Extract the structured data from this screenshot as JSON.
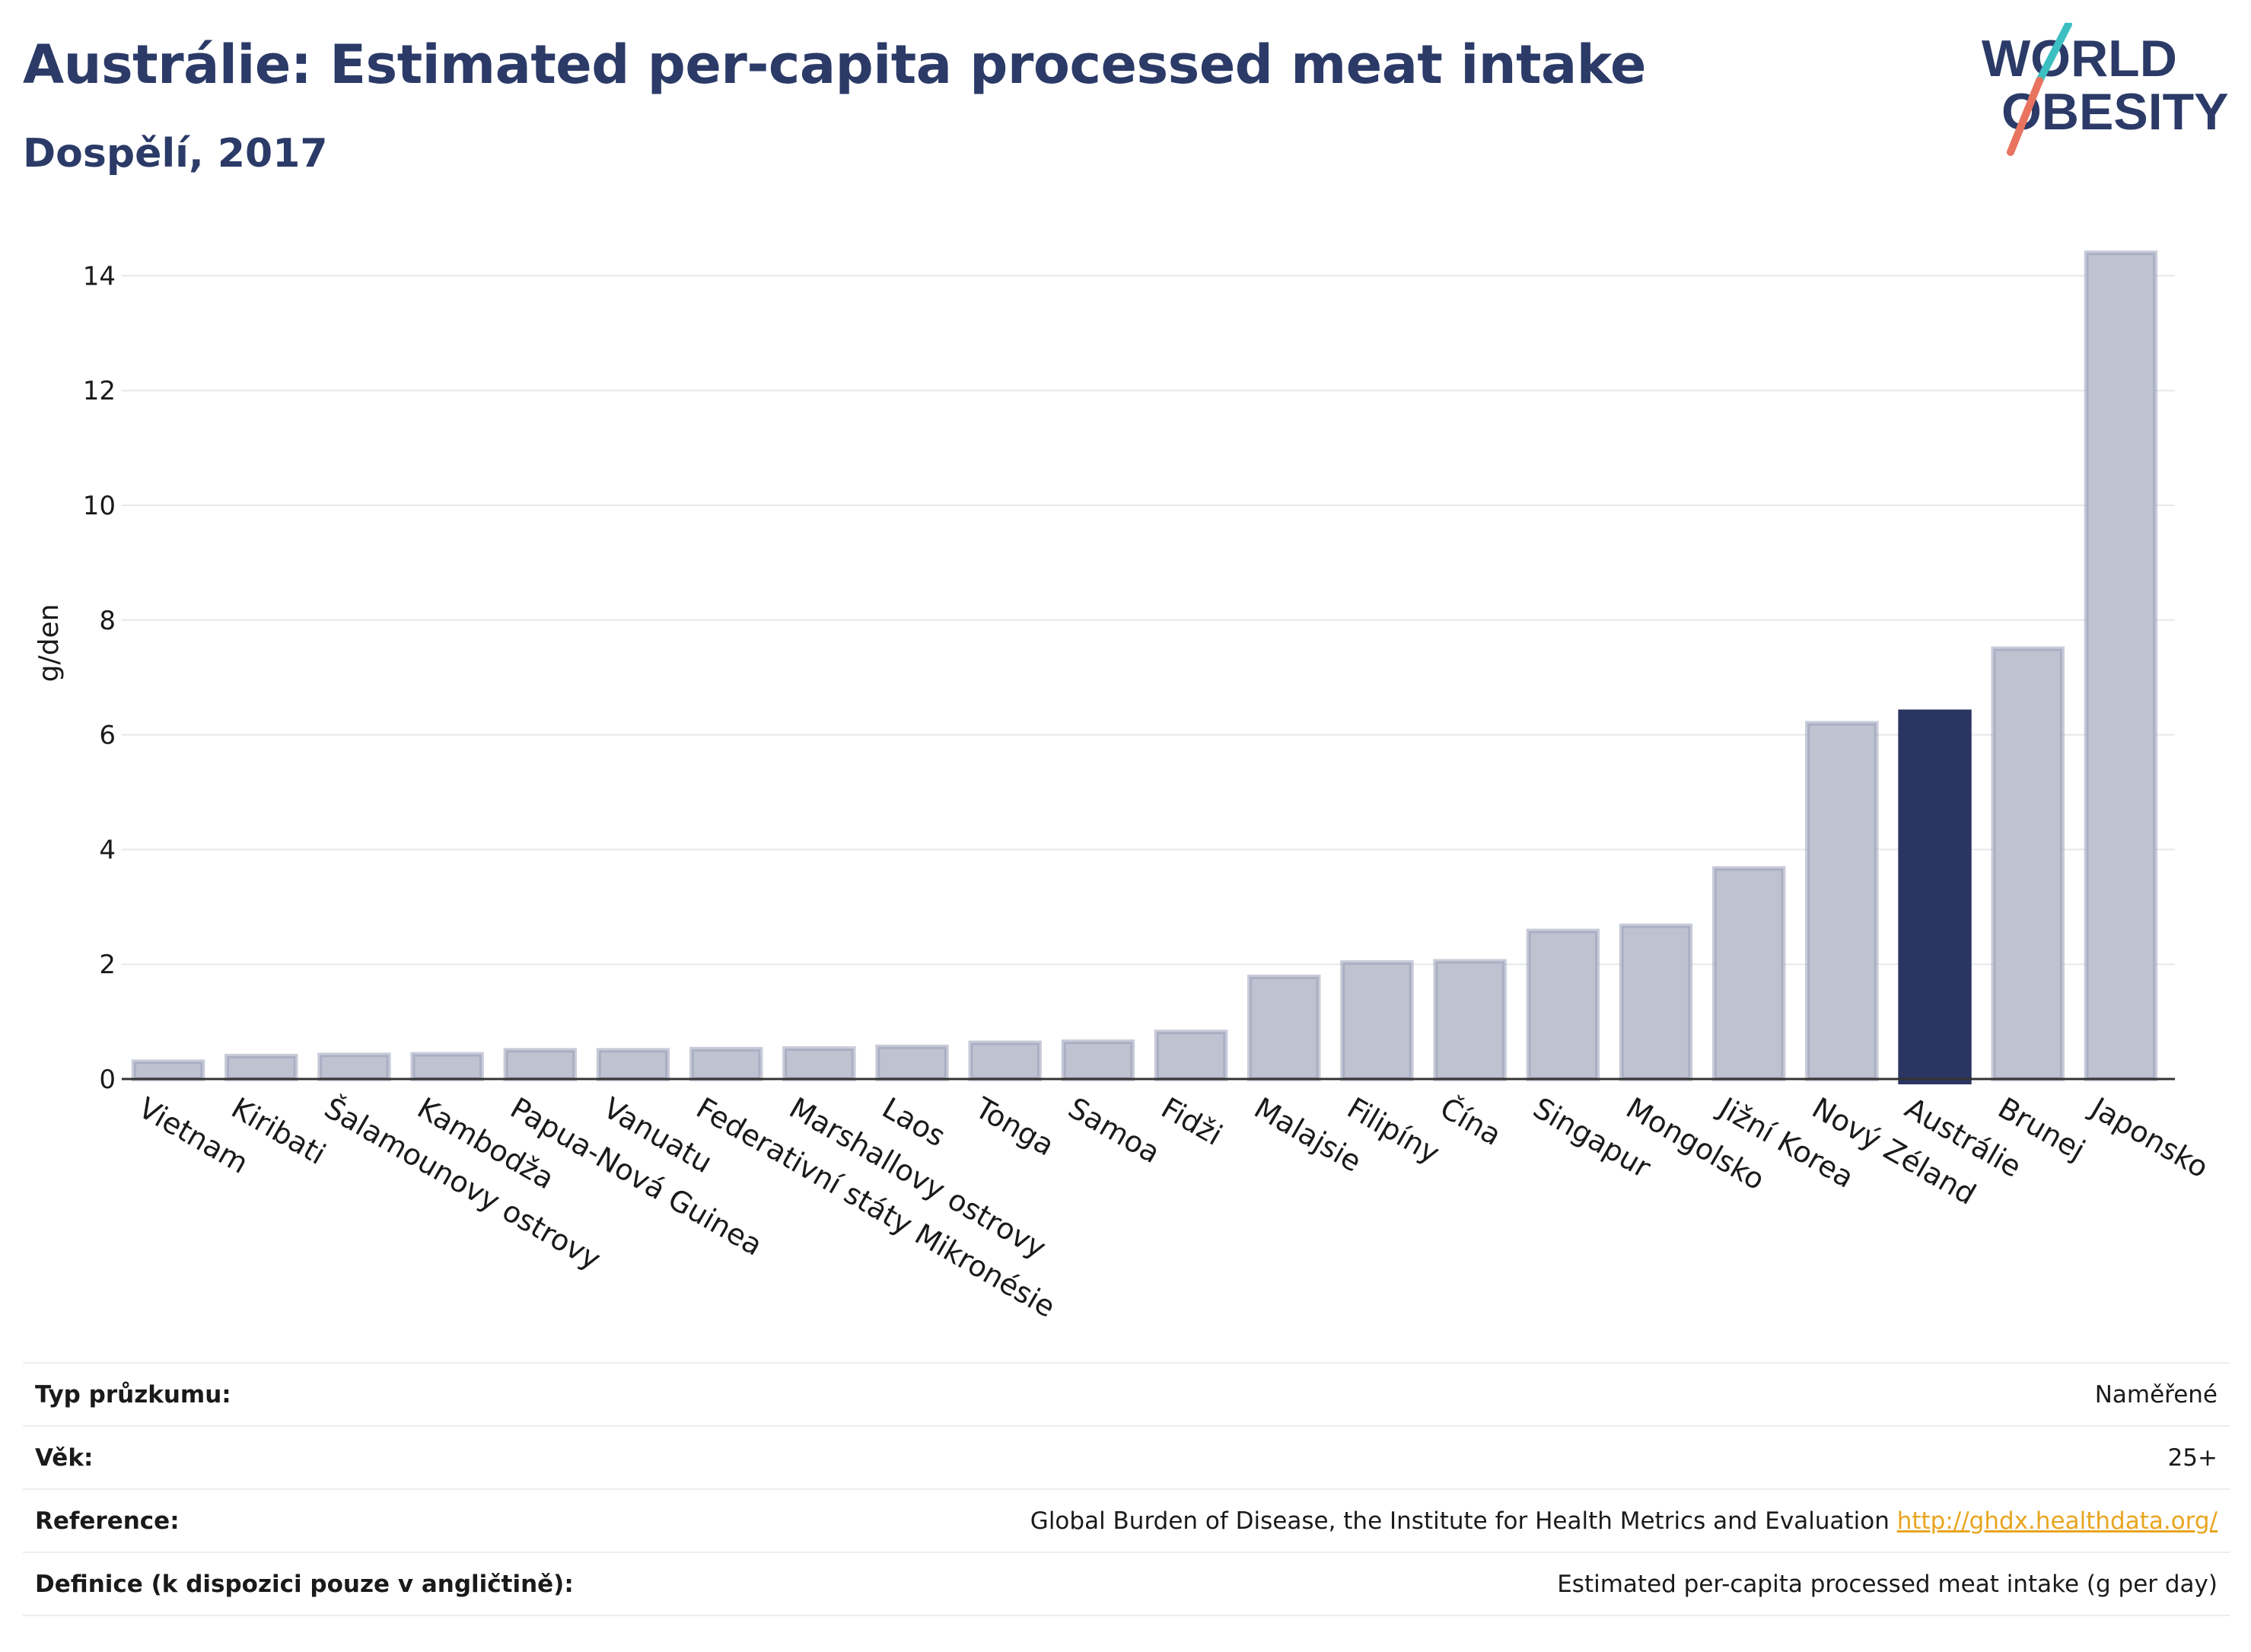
{
  "header": {
    "title": "Austrálie: Estimated per-capita processed meat intake",
    "subtitle": "Dospělí, 2017"
  },
  "logo": {
    "line1": "WORLD",
    "line2": "OBESITY",
    "colors": {
      "text": "#2b3a67",
      "slash_teal": "#3bbfc1",
      "slash_coral": "#e8735f"
    }
  },
  "colors": {
    "bar": "#bfc2d1",
    "bar_stroke": "#9aa0b8",
    "highlight": "#2b3561",
    "title": "#2b3a67",
    "grid": "#e6e8ec",
    "link": "#e8a520"
  },
  "chart_data": {
    "type": "bar",
    "ylabel": "g/den",
    "ylim": [
      0,
      15
    ],
    "yticks": [
      0,
      2,
      4,
      6,
      8,
      10,
      12,
      14
    ],
    "grid": true,
    "highlight": "Austrálie",
    "categories": [
      "Vietnam",
      "Kiribati",
      "Šalamounovy ostrovy",
      "Kambodža",
      "Papua-Nová Guinea",
      "Vanuatu",
      "Federativní státy Mikronésie",
      "Marshallovy ostrovy",
      "Laos",
      "Tonga",
      "Samoa",
      "Fidži",
      "Malajsie",
      "Filipíny",
      "Čína",
      "Singapur",
      "Mongolsko",
      "Jižní Korea",
      "Nový Zéland",
      "Austrálie",
      "Brunej",
      "Japonsko"
    ],
    "values": [
      0.3,
      0.4,
      0.42,
      0.43,
      0.5,
      0.5,
      0.52,
      0.53,
      0.56,
      0.63,
      0.65,
      0.82,
      1.78,
      2.03,
      2.05,
      2.58,
      2.67,
      3.67,
      6.2,
      6.4,
      7.5,
      14.4
    ]
  },
  "info_rows": [
    {
      "label": "Typ průzkumu:",
      "value": "Naměřené"
    },
    {
      "label": "Věk:",
      "value": "25+"
    },
    {
      "label": "Reference:",
      "value": "Global Burden of Disease, the Institute for Health Metrics and Evaluation",
      "link": "http://ghdx.healthdata.org/"
    },
    {
      "label": "Definice (k dispozici pouze v angličtině):",
      "value": "Estimated per-capita processed meat intake (g per day)"
    }
  ]
}
